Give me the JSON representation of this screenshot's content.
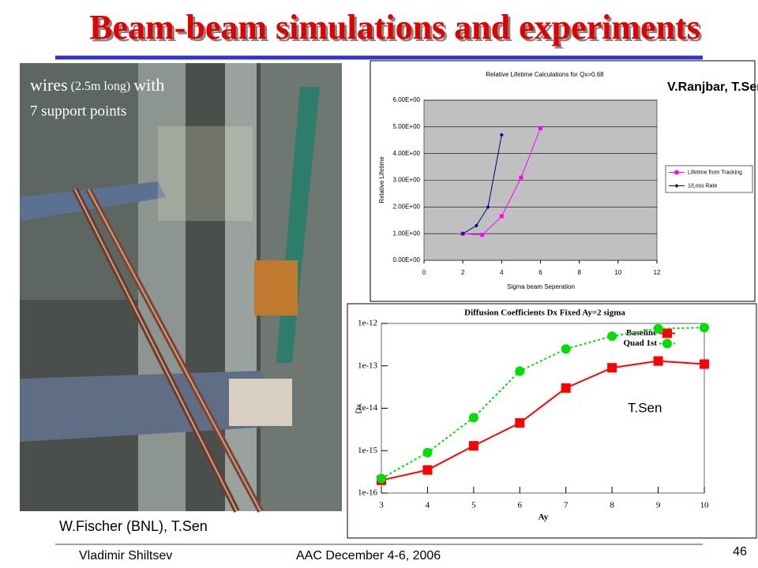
{
  "title": "Beam-beam simulations and experiments",
  "photo": {
    "caption_line1": [
      "wires",
      "(2.5m long)",
      "with"
    ],
    "caption_line2": "7 support points",
    "credit": "W.Fischer (BNL), T.Sen"
  },
  "footer": {
    "author": "Vladimir Shiltsev",
    "event": "AAC December 4-6, 2006",
    "page": "46"
  },
  "chart_data": [
    {
      "type": "line",
      "title": "Relative Lifetime Calculations for Qx=0.68",
      "x_label": "Sigma beam Seperation",
      "y_label": "Relative Lifetime",
      "annotation": "V.Ranjbar, T.Sen",
      "xlim": [
        0,
        12
      ],
      "xticks": [
        0,
        2,
        4,
        6,
        8,
        10,
        12
      ],
      "ylim": [
        0,
        6
      ],
      "yticks": [
        {
          "value": 0,
          "label": "0.00E+00"
        },
        {
          "value": 1,
          "label": "1.00E+00"
        },
        {
          "value": 2,
          "label": "2.00E+00"
        },
        {
          "value": 3,
          "label": "3.00E+00"
        },
        {
          "value": 4,
          "label": "4.00E+00"
        },
        {
          "value": 5,
          "label": "5.00E+00"
        },
        {
          "value": 6,
          "label": "6.00E+00"
        }
      ],
      "grid": true,
      "legend": "right",
      "series": [
        {
          "name": "Lifetime from Tracking",
          "color": "#ff00ff",
          "marker": "square",
          "x": [
            2,
            3,
            4,
            5,
            6
          ],
          "values": [
            1.0,
            0.95,
            1.65,
            3.1,
            4.95
          ]
        },
        {
          "name": "1/Loss Rate",
          "color": "#000080",
          "marker": "diamond",
          "x": [
            2,
            2.7,
            3.3,
            4
          ],
          "values": [
            1.0,
            1.3,
            2.0,
            4.7
          ]
        }
      ]
    },
    {
      "type": "line",
      "title": "Diffusion Coefficients Dx Fixed Ay=2 sigma",
      "x_label": "Ay",
      "y_label": "Dx",
      "annotation": "T.Sen",
      "log_y": true,
      "xlim": [
        3,
        10
      ],
      "xticks": [
        3,
        4,
        5,
        6,
        7,
        8,
        9,
        10
      ],
      "ylim": [
        1e-16,
        1e-12
      ],
      "yticks": [
        {
          "value": 1e-16,
          "label": "1e-16"
        },
        {
          "value": 1e-15,
          "label": "1e-15"
        },
        {
          "value": 1e-14,
          "label": "1e-14"
        },
        {
          "value": 1e-13,
          "label": "1e-13"
        },
        {
          "value": 1e-12,
          "label": "1e-12"
        }
      ],
      "grid": false,
      "legend": "upper right",
      "series": [
        {
          "name": "Baseline",
          "color": "#ff0000",
          "marker": "square",
          "x": [
            3,
            4,
            5,
            6,
            7,
            8,
            9,
            10
          ],
          "values": [
            2e-16,
            3.5e-16,
            1.3e-15,
            4.5e-15,
            3e-14,
            9e-14,
            1.3e-13,
            1.1e-13
          ]
        },
        {
          "name": "Quad 1st",
          "color": "#00dd00",
          "marker": "circle",
          "dashed": true,
          "x": [
            3,
            4,
            5,
            6,
            7,
            8,
            9,
            10
          ],
          "values": [
            2.2e-16,
            9e-16,
            6e-15,
            7.5e-14,
            2.5e-13,
            5e-13,
            7.5e-13,
            8e-13
          ]
        }
      ]
    }
  ]
}
